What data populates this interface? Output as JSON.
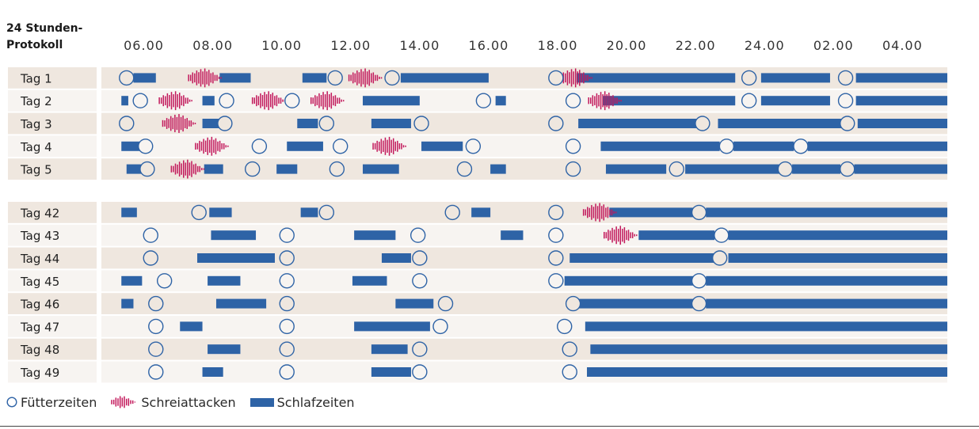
{
  "chart_data": {
    "type": "timeline",
    "title_lines": [
      "24 Stunden-",
      "Protokoll"
    ],
    "tick_labels": [
      "06.00",
      "08.00",
      "10.00",
      "12.00",
      "14.00",
      "16.00",
      "18.00",
      "20.00",
      "22.00",
      "24.00",
      "02.00",
      "04.00"
    ],
    "x_range_hours": [
      5.0,
      29.3
    ],
    "legend": {
      "feeding": "Fütterzeiten",
      "crying": "Schreiattacken",
      "sleeping": "Schlafzeiten"
    },
    "colors": {
      "sleep": "#2e63a6",
      "feeding": "#2e63a6",
      "cry": "#c2185b",
      "row_shade": "#efe7df",
      "row_light": "#f7f4f1"
    },
    "groups": [
      {
        "days": [
          {
            "label": "Tag 1",
            "sleep": [
              [
                5.7,
                6.35
              ],
              [
                8.2,
                9.1
              ],
              [
                10.6,
                11.3
              ],
              [
                13.45,
                16.0
              ],
              [
                18.55,
                23.15
              ],
              [
                23.9,
                25.9
              ],
              [
                26.65,
                29.3
              ]
            ],
            "feed": [
              5.5,
              11.55,
              13.2,
              17.95,
              23.55,
              26.35
            ],
            "cry": [
              [
                7.3,
                8.3
              ],
              [
                11.95,
                12.95
              ],
              [
                18.05,
                19.05
              ]
            ]
          },
          {
            "label": "Tag 2",
            "sleep": [
              [
                5.35,
                5.55
              ],
              [
                7.7,
                8.05
              ],
              [
                12.35,
                14.0
              ],
              [
                16.2,
                16.5
              ],
              [
                19.3,
                23.15
              ],
              [
                23.9,
                25.9
              ],
              [
                26.65,
                29.3
              ]
            ],
            "feed": [
              5.9,
              8.4,
              10.3,
              15.85,
              18.45,
              23.55,
              26.35
            ],
            "cry": [
              [
                6.45,
                7.45
              ],
              [
                9.15,
                10.15
              ],
              [
                10.85,
                11.85
              ],
              [
                18.9,
                19.9
              ]
            ]
          },
          {
            "label": "Tag 3",
            "sleep": [
              [
                7.7,
                8.2
              ],
              [
                10.45,
                11.05
              ],
              [
                12.6,
                13.75
              ],
              [
                18.6,
                22.3
              ],
              [
                22.65,
                26.35
              ],
              [
                26.7,
                29.3
              ]
            ],
            "feed": [
              5.5,
              8.35,
              11.3,
              14.05,
              17.95,
              22.2,
              26.4
            ],
            "cry": [
              [
                6.55,
                7.55
              ]
            ]
          },
          {
            "label": "Tag 4",
            "sleep": [
              [
                5.35,
                5.9
              ],
              [
                10.15,
                11.2
              ],
              [
                14.05,
                15.25
              ],
              [
                19.25,
                22.7
              ],
              [
                23.1,
                24.85
              ],
              [
                25.25,
                29.3
              ]
            ],
            "feed": [
              6.05,
              9.35,
              11.7,
              15.55,
              18.45,
              22.9,
              25.05
            ],
            "cry": [
              [
                7.5,
                8.5
              ],
              [
                12.65,
                13.65
              ]
            ]
          },
          {
            "label": "Tag 5",
            "sleep": [
              [
                5.5,
                5.95
              ],
              [
                7.75,
                8.3
              ],
              [
                9.85,
                10.45
              ],
              [
                12.35,
                13.4
              ],
              [
                16.05,
                16.5
              ],
              [
                19.4,
                21.15
              ],
              [
                21.7,
                24.45
              ],
              [
                24.8,
                26.2
              ],
              [
                26.6,
                29.3
              ]
            ],
            "feed": [
              6.1,
              9.15,
              11.6,
              15.3,
              18.45,
              21.45,
              24.6,
              26.4
            ],
            "cry": [
              [
                6.8,
                7.8
              ]
            ]
          }
        ]
      },
      {
        "days": [
          {
            "label": "Tag 42",
            "sleep": [
              [
                5.35,
                5.8
              ],
              [
                7.9,
                8.55
              ],
              [
                10.55,
                11.05
              ],
              [
                15.5,
                16.05
              ],
              [
                19.5,
                21.95
              ],
              [
                22.3,
                29.3
              ]
            ],
            "feed": [
              7.6,
              11.3,
              14.95,
              17.95,
              22.1
            ],
            "cry": [
              [
                18.75,
                19.75
              ]
            ]
          },
          {
            "label": "Tag 43",
            "sleep": [
              [
                7.95,
                9.25
              ],
              [
                12.1,
                13.3
              ],
              [
                16.35,
                17.0
              ],
              [
                20.35,
                22.55
              ],
              [
                22.95,
                29.3
              ]
            ],
            "feed": [
              6.2,
              10.15,
              13.95,
              17.95,
              22.75
            ],
            "cry": [
              [
                19.35,
                20.35
              ]
            ]
          },
          {
            "label": "Tag 44",
            "sleep": [
              [
                7.55,
                9.8
              ],
              [
                12.9,
                13.75
              ],
              [
                18.35,
                22.6
              ],
              [
                22.95,
                29.3
              ]
            ],
            "feed": [
              6.2,
              10.15,
              14.0,
              17.95,
              22.7
            ],
            "cry": []
          },
          {
            "label": "Tag 45",
            "sleep": [
              [
                5.35,
                5.95
              ],
              [
                7.85,
                8.8
              ],
              [
                12.05,
                13.05
              ],
              [
                18.2,
                21.95
              ],
              [
                22.3,
                29.3
              ]
            ],
            "feed": [
              6.6,
              10.15,
              14.0,
              17.95,
              22.1
            ],
            "cry": []
          },
          {
            "label": "Tag 46",
            "sleep": [
              [
                5.35,
                5.7
              ],
              [
                8.1,
                9.55
              ],
              [
                13.3,
                14.4
              ],
              [
                18.6,
                21.95
              ],
              [
                22.3,
                29.3
              ]
            ],
            "feed": [
              6.35,
              10.15,
              14.75,
              18.45,
              22.1
            ],
            "cry": []
          },
          {
            "label": "Tag 47",
            "sleep": [
              [
                7.05,
                7.7
              ],
              [
                12.1,
                14.3
              ],
              [
                18.8,
                29.3
              ]
            ],
            "feed": [
              6.35,
              10.15,
              14.6,
              18.2
            ],
            "cry": []
          },
          {
            "label": "Tag 48",
            "sleep": [
              [
                7.85,
                8.8
              ],
              [
                12.6,
                13.65
              ],
              [
                18.95,
                29.3
              ]
            ],
            "feed": [
              6.35,
              10.15,
              14.0,
              18.35
            ],
            "cry": []
          },
          {
            "label": "Tag 49",
            "sleep": [
              [
                7.7,
                8.3
              ],
              [
                12.6,
                13.75
              ],
              [
                18.85,
                29.3
              ]
            ],
            "feed": [
              6.35,
              10.15,
              14.0,
              18.35
            ],
            "cry": []
          }
        ]
      }
    ]
  }
}
